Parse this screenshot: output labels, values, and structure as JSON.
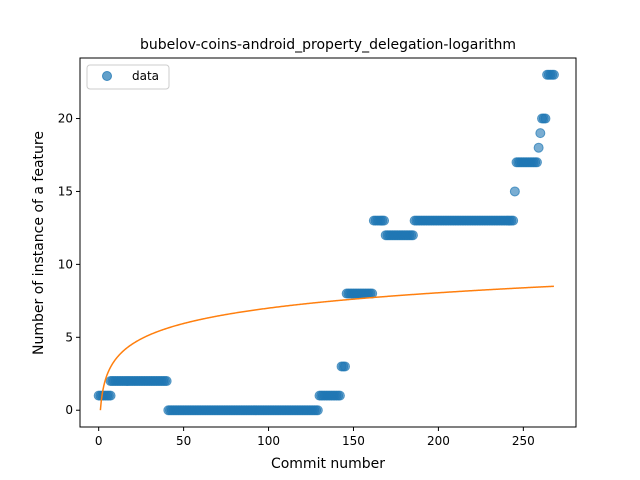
{
  "chart_data": {
    "type": "scatter",
    "title": "bubelov-coins-android_property_delegation-logarithm",
    "xlabel": "Commit number",
    "ylabel": "Number of instance of a feature",
    "xlim": [
      -11,
      281
    ],
    "ylim": [
      -1.15,
      24.15
    ],
    "xticks": [
      0,
      50,
      100,
      150,
      200,
      250
    ],
    "yticks": [
      0,
      5,
      10,
      15,
      20
    ],
    "legend": {
      "position": "top-left",
      "entries": [
        "data"
      ]
    },
    "colors": {
      "scatter": "#1f77b4",
      "fit": "#ff7f0e"
    },
    "segments": [
      {
        "x_start": 0,
        "x_end": 7,
        "y": 1
      },
      {
        "x_start": 7,
        "x_end": 40,
        "y": 2
      },
      {
        "x_start": 41,
        "x_end": 129,
        "y": 0
      },
      {
        "x_start": 130,
        "x_end": 142,
        "y": 1
      },
      {
        "x_start": 143,
        "x_end": 145,
        "y": 3
      },
      {
        "x_start": 146,
        "x_end": 161,
        "y": 8
      },
      {
        "x_start": 162,
        "x_end": 168,
        "y": 13
      },
      {
        "x_start": 169,
        "x_end": 185,
        "y": 12
      },
      {
        "x_start": 186,
        "x_end": 244,
        "y": 13
      },
      {
        "x_start": 245,
        "x_end": 245,
        "y": 15
      },
      {
        "x_start": 246,
        "x_end": 258,
        "y": 17
      },
      {
        "x_start": 259,
        "x_end": 259,
        "y": 18
      },
      {
        "x_start": 260,
        "x_end": 260,
        "y": 19
      },
      {
        "x_start": 261,
        "x_end": 263,
        "y": 20
      },
      {
        "x_start": 264,
        "x_end": 268,
        "y": 23
      }
    ],
    "fit": {
      "type": "logarithmic",
      "a": 1.52,
      "b": 0.0,
      "x_start": 1,
      "x_end": 268
    }
  }
}
